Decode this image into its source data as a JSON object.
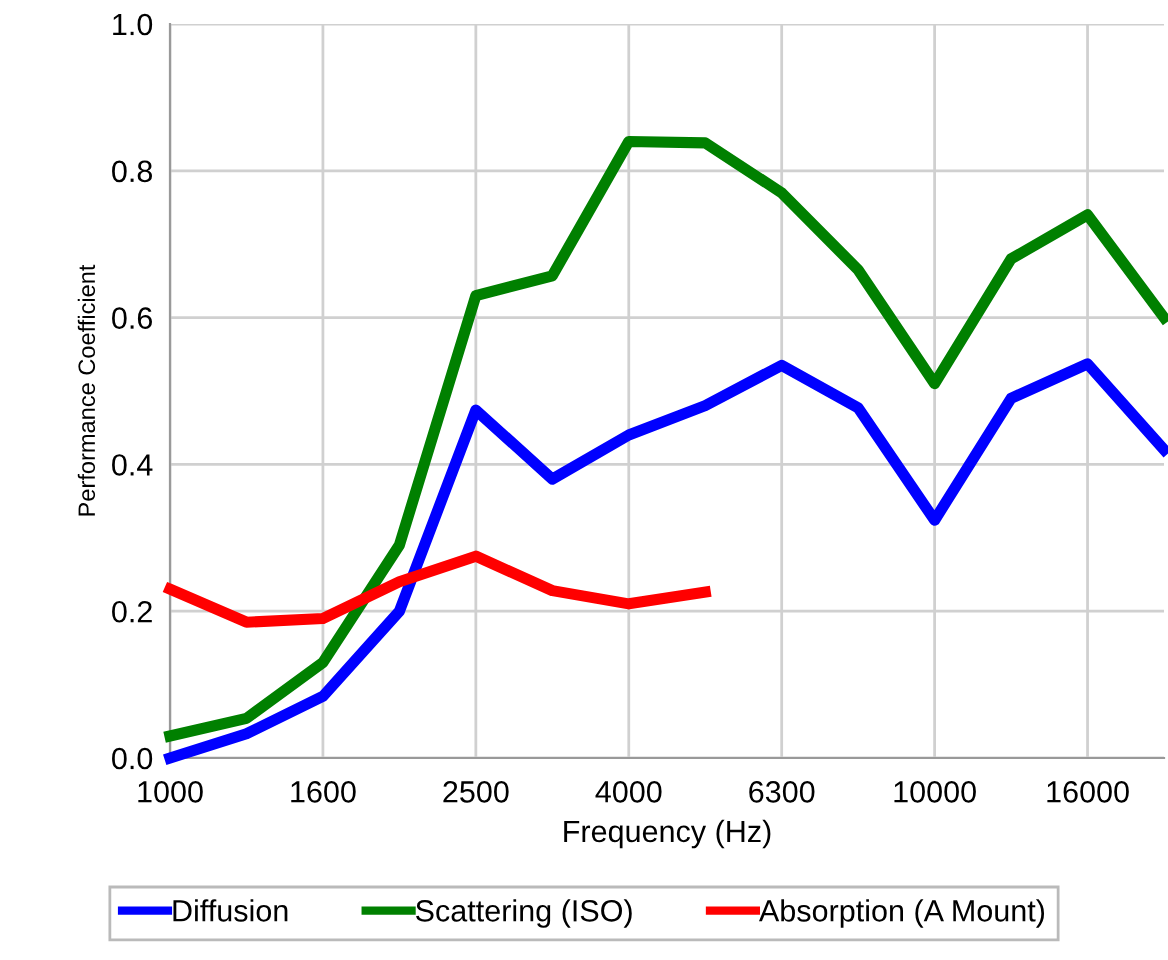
{
  "chart_data": {
    "type": "line",
    "xlabel": "Frequency (Hz)",
    "ylabel": "Performance Coefficient",
    "categories": [
      "1000",
      null,
      "1600",
      null,
      "2500",
      null,
      "4000",
      null,
      "6300",
      null,
      "10000",
      null,
      "16000",
      null
    ],
    "series": [
      {
        "name": "Diffusion",
        "color": "#0000ff",
        "values": [
          0.0,
          0.033,
          0.084,
          0.2,
          0.474,
          0.38,
          0.44,
          0.48,
          0.535,
          0.477,
          0.324,
          0.49,
          0.537,
          0.42
        ]
      },
      {
        "name": "Scattering (ISO)",
        "color": "#008000",
        "values": [
          0.03,
          0.054,
          0.13,
          0.29,
          0.63,
          0.657,
          0.84,
          0.838,
          0.77,
          0.665,
          0.51,
          0.68,
          0.74,
          0.6
        ]
      },
      {
        "name": "Absorption (A Mount)",
        "color": "#ff0000",
        "values": [
          0.23,
          0.185,
          0.19,
          0.24,
          0.275,
          0.228,
          0.21,
          0.226,
          null,
          null,
          null,
          null,
          null,
          null
        ]
      }
    ],
    "ylim": [
      0,
      1.0
    ],
    "yticks": [
      {
        "value": 0,
        "label": "0.0"
      },
      {
        "value": 0.2,
        "label": "0.2"
      },
      {
        "value": 0.4,
        "label": "0.4"
      },
      {
        "value": 0.6,
        "label": "0.6"
      },
      {
        "value": 0.8,
        "label": "0.8"
      },
      {
        "value": 1.0,
        "label": "1.0"
      }
    ],
    "grid": true,
    "legend": "bottom",
    "marker": "none",
    "line_style": "solid"
  }
}
